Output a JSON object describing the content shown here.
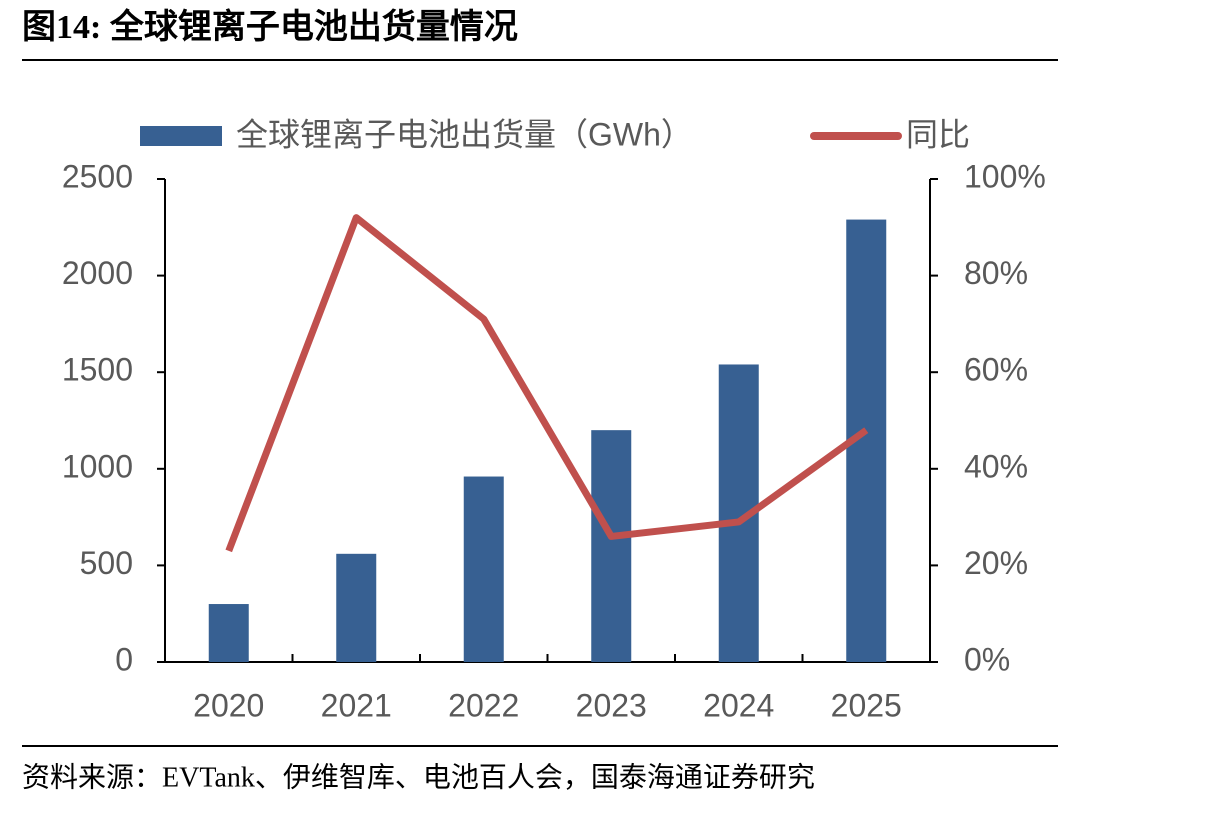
{
  "chart_data": {
    "type": "bar_line",
    "title": "图14:  全球锂离子电池出货量情况",
    "source": "资料来源：EVTank、伊维智库、电池百人会，国泰海通证券研究",
    "categories": [
      "2020",
      "2021",
      "2022",
      "2023",
      "2024",
      "2025"
    ],
    "series": [
      {
        "name": "全球锂离子电池出货量（GWh）",
        "type": "bar",
        "color": "#376092",
        "values": [
          300,
          560,
          960,
          1200,
          1540,
          2290
        ]
      },
      {
        "name": "同比",
        "type": "line",
        "color": "#c0504d",
        "axis": "y2",
        "values": [
          23,
          92,
          71,
          26,
          29,
          48
        ]
      }
    ],
    "ylim": [
      0,
      2500
    ],
    "yticks": [
      0,
      500,
      1000,
      1500,
      2000,
      2500
    ],
    "y2lim": [
      0,
      100
    ],
    "y2ticks": [
      {
        "value": 0,
        "label": "0%"
      },
      {
        "value": 20,
        "label": "20%"
      },
      {
        "value": 40,
        "label": "40%"
      },
      {
        "value": 60,
        "label": "60%"
      },
      {
        "value": 80,
        "label": "80%"
      },
      {
        "value": 100,
        "label": "100%"
      }
    ],
    "legend": "top"
  }
}
